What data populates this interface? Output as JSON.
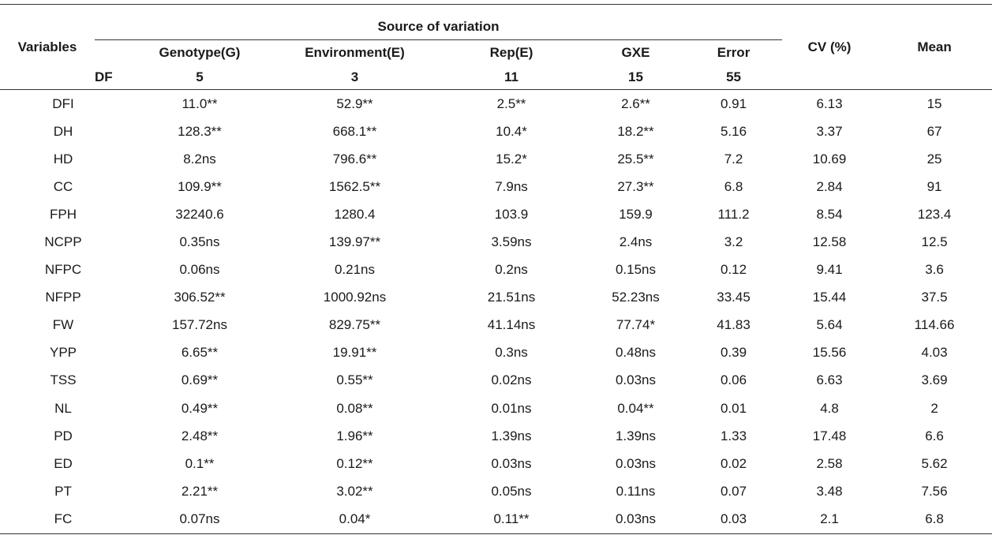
{
  "header": {
    "variables": "Variables",
    "source_of_variation": "Source of variation",
    "cv": "CV (%)",
    "mean": "Mean",
    "columns": [
      "Genotype(G)",
      "Environment(E)",
      "Rep(E)",
      "GXE",
      "Error"
    ],
    "df_label": "DF",
    "df_values": [
      "5",
      "3",
      "11",
      "15",
      "55"
    ]
  },
  "rows": [
    [
      "DFI",
      "11.0**",
      "52.9**",
      "2.5**",
      "2.6**",
      "0.91",
      "6.13",
      "15"
    ],
    [
      "DH",
      "128.3**",
      "668.1**",
      "10.4*",
      "18.2**",
      "5.16",
      "3.37",
      "67"
    ],
    [
      "HD",
      "8.2ns",
      "796.6**",
      "15.2*",
      "25.5**",
      "7.2",
      "10.69",
      "25"
    ],
    [
      "CC",
      "109.9**",
      "1562.5**",
      "7.9ns",
      "27.3**",
      "6.8",
      "2.84",
      "91"
    ],
    [
      "FPH",
      "32240.6",
      "1280.4",
      "103.9",
      "159.9",
      "111.2",
      "8.54",
      "123.4"
    ],
    [
      "NCPP",
      "0.35ns",
      "139.97**",
      "3.59ns",
      "2.4ns",
      "3.2",
      "12.58",
      "12.5"
    ],
    [
      "NFPC",
      "0.06ns",
      "0.21ns",
      "0.2ns",
      "0.15ns",
      "0.12",
      "9.41",
      "3.6"
    ],
    [
      "NFPP",
      "306.52**",
      "1000.92ns",
      "21.51ns",
      "52.23ns",
      "33.45",
      "15.44",
      "37.5"
    ],
    [
      "FW",
      "157.72ns",
      "829.75**",
      "41.14ns",
      "77.74*",
      "41.83",
      "5.64",
      "114.66"
    ],
    [
      "YPP",
      "6.65**",
      "19.91**",
      "0.3ns",
      "0.48ns",
      "0.39",
      "15.56",
      "4.03"
    ],
    [
      "TSS",
      "0.69**",
      "0.55**",
      "0.02ns",
      "0.03ns",
      "0.06",
      "6.63",
      "3.69"
    ],
    [
      "NL",
      "0.49**",
      "0.08**",
      "0.01ns",
      "0.04**",
      "0.01",
      "4.8",
      "2"
    ],
    [
      "PD",
      "2.48**",
      "1.96**",
      "1.39ns",
      "1.39ns",
      "1.33",
      "17.48",
      "6.6"
    ],
    [
      "ED",
      "0.1**",
      "0.12**",
      "0.03ns",
      "0.03ns",
      "0.02",
      "2.58",
      "5.62"
    ],
    [
      "PT",
      "2.21**",
      "3.02**",
      "0.05ns",
      "0.11ns",
      "0.07",
      "3.48",
      "7.56"
    ],
    [
      "FC",
      "0.07ns",
      "0.04*",
      "0.11**",
      "0.03ns",
      "0.03",
      "2.1",
      "6.8"
    ]
  ]
}
